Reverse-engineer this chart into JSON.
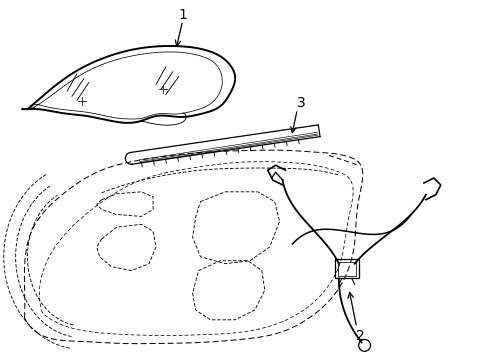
{
  "background_color": "#ffffff",
  "line_color": "#000000",
  "label_1": "1",
  "label_2": "2",
  "label_3": "3",
  "label_fontsize": 10,
  "figsize": [
    4.89,
    3.6
  ],
  "dpi": 100
}
